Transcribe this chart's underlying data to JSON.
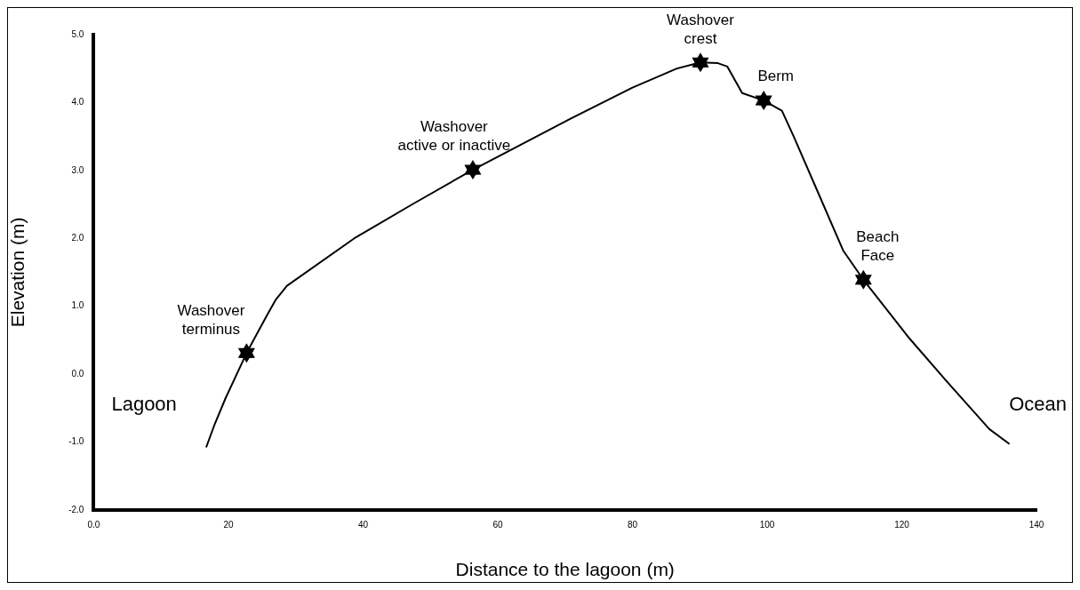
{
  "chart_data": {
    "type": "line",
    "xlabel": "Distance to the lagoon (m)",
    "ylabel": "Elevation (m)",
    "xlim": [
      0,
      140
    ],
    "ylim": [
      -2,
      5
    ],
    "xticks": [
      {
        "value": 0,
        "label": "0.0"
      },
      20,
      40,
      60,
      80,
      100,
      120,
      140
    ],
    "yticks": [
      {
        "value": -2,
        "label": "-2.0"
      },
      {
        "value": -1,
        "label": "-1.0"
      },
      {
        "value": 0,
        "label": "0.0"
      },
      {
        "value": 1,
        "label": "1.0"
      },
      {
        "value": 2,
        "label": "2.0"
      },
      {
        "value": 3,
        "label": "3.0"
      },
      {
        "value": 4,
        "label": "4.0"
      },
      {
        "value": 5,
        "label": "5.0"
      }
    ],
    "grid": false,
    "legend": false,
    "series": [
      {
        "color": "#000000",
        "marker": "none",
        "x": [
          16.7,
          18.0,
          19.6,
          22.7,
          25.7,
          27.0,
          28.7,
          38.7,
          47.3,
          56.3,
          70.8,
          80.0,
          86.6,
          90.1,
          92.7,
          94.1,
          96.3,
          99.5,
          102.2,
          104.0,
          107.5,
          111.3,
          114.3,
          121.1,
          126.7,
          133.0,
          136.0
        ],
        "values": [
          -1.08,
          -0.73,
          -0.35,
          0.31,
          0.86,
          1.09,
          1.3,
          2.0,
          2.5,
          3.01,
          3.76,
          4.22,
          4.5,
          4.59,
          4.58,
          4.53,
          4.14,
          4.03,
          3.88,
          3.49,
          2.69,
          1.82,
          1.39,
          0.53,
          -0.11,
          -0.81,
          -1.03
        ]
      },
      {
        "type": "scatter",
        "color": "#000000",
        "x": [
          22.7,
          56.3,
          90.1,
          99.5,
          114.3
        ],
        "values": [
          0.31,
          3.01,
          4.59,
          4.03,
          1.39
        ]
      }
    ],
    "annotations": [
      {
        "text": "Washover\nterminus",
        "x": 22.7,
        "y": 0.31
      },
      {
        "text": "Washover\nactive or inactive",
        "x": 56.3,
        "y": 3.01
      },
      {
        "text": "Washover\ncrest",
        "x": 90.1,
        "y": 4.59
      },
      {
        "text": "Berm",
        "x": 99.5,
        "y": 4.03
      },
      {
        "text": "Beach\nFace",
        "x": 114.3,
        "y": 1.39
      },
      "Lagoon",
      "Ocean"
    ]
  }
}
